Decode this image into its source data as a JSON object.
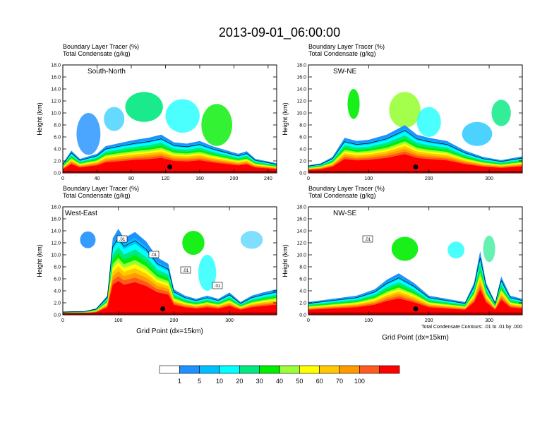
{
  "chart_data": {
    "type": "heatmap",
    "title": "2013-09-01_06:00:00",
    "field_label": "Boundary Layer Tracer",
    "field_units": "(%)",
    "contour_label": "Total Condensate",
    "contour_units": "(g/kg)",
    "ylabel": "Height (km)",
    "xlabel": "Grid Point (dx=15km)",
    "contour_note": "Total Condensate Contours: .01 to .01 by .000",
    "legend": {
      "labels": [
        "1",
        "5",
        "10",
        "20",
        "30",
        "40",
        "50",
        "60",
        "70",
        "100"
      ],
      "colors": [
        "#ffffff",
        "#1e90ff",
        "#00bfff",
        "#00ffff",
        "#00e880",
        "#00ee00",
        "#9aff3a",
        "#ffff00",
        "#ffc800",
        "#ff9a00",
        "#ff5a1e",
        "#ff0000"
      ]
    },
    "panels": [
      {
        "name": "South-North",
        "xlim": [
          0,
          250
        ],
        "xticks": [
          "0",
          "40",
          "80",
          "120",
          "160",
          "200",
          "240"
        ],
        "xtick_values": [
          0,
          40,
          80,
          120,
          160,
          200,
          240
        ],
        "ylim": [
          0,
          18
        ],
        "yticks": [
          "0.0",
          "2.0",
          "4.0",
          "6.0",
          "8.0",
          "10.0",
          "12.0",
          "14.0",
          "16.0",
          "18.0"
        ],
        "station_x": 125,
        "contour_labels": [],
        "show_xlabel": false,
        "show_note": false,
        "profile": [
          [
            0,
            1.5
          ],
          [
            10,
            3.5
          ],
          [
            20,
            2.2
          ],
          [
            40,
            3.0
          ],
          [
            50,
            4.2
          ],
          [
            70,
            4.8
          ],
          [
            85,
            5.2
          ],
          [
            100,
            5.5
          ],
          [
            115,
            6.0
          ],
          [
            130,
            4.8
          ],
          [
            145,
            4.6
          ],
          [
            160,
            5.0
          ],
          [
            175,
            4.2
          ],
          [
            190,
            3.6
          ],
          [
            205,
            3.0
          ],
          [
            215,
            3.4
          ],
          [
            225,
            2.2
          ],
          [
            240,
            1.8
          ],
          [
            250,
            1.5
          ]
        ],
        "blobs": [
          [
            30,
            6.5,
            14,
            3.5,
            0.8,
            "#1e90ff"
          ],
          [
            95,
            11.0,
            22,
            2.5,
            0.9,
            "#00e880"
          ],
          [
            140,
            9.5,
            20,
            2.8,
            0.7,
            "#00ffff"
          ],
          [
            180,
            8.0,
            18,
            3.5,
            0.8,
            "#00ee00"
          ],
          [
            60,
            9.0,
            12,
            2.0,
            0.6,
            "#00bfff"
          ]
        ]
      },
      {
        "name": "SW-NE",
        "xlim": [
          0,
          355
        ],
        "xticks": [
          "0",
          "100",
          "200",
          "300"
        ],
        "xtick_values": [
          0,
          100,
          200,
          300
        ],
        "ylim": [
          0,
          18
        ],
        "yticks": [
          "0.0",
          "2.0",
          "4.0",
          "6.0",
          "8.0",
          "10.0",
          "12.0",
          "14.0",
          "16.0",
          "18.0"
        ],
        "station_x": 178,
        "contour_labels": [],
        "show_xlabel": false,
        "show_note": false,
        "profile": [
          [
            0,
            1.2
          ],
          [
            20,
            1.5
          ],
          [
            40,
            2.5
          ],
          [
            60,
            5.5
          ],
          [
            80,
            5.0
          ],
          [
            100,
            5.2
          ],
          [
            130,
            6.0
          ],
          [
            160,
            7.5
          ],
          [
            180,
            6.0
          ],
          [
            200,
            5.5
          ],
          [
            230,
            5.0
          ],
          [
            260,
            3.5
          ],
          [
            290,
            2.5
          ],
          [
            320,
            2.0
          ],
          [
            355,
            2.6
          ]
        ],
        "blobs": [
          [
            75,
            11.5,
            10,
            2.5,
            0.9,
            "#00ee00"
          ],
          [
            160,
            10.5,
            26,
            3.0,
            0.9,
            "#9aff3a"
          ],
          [
            200,
            8.5,
            20,
            2.5,
            0.7,
            "#00ffff"
          ],
          [
            280,
            6.5,
            25,
            2.0,
            0.7,
            "#00bfff"
          ],
          [
            320,
            10.0,
            16,
            2.2,
            0.8,
            "#00e880"
          ]
        ]
      },
      {
        "name": "West-East",
        "xlim": [
          0,
          385
        ],
        "xticks": [
          "0",
          "100",
          "200",
          "300"
        ],
        "xtick_values": [
          0,
          100,
          200,
          300
        ],
        "ylim": [
          0,
          18
        ],
        "yticks": [
          "0.0",
          "2.0",
          "4.0",
          "6.0",
          "8.0",
          "10.0",
          "12.0",
          "14.0",
          "16.0",
          "18.0"
        ],
        "station_x": 180,
        "contour_labels": [
          ".01",
          ".01",
          ".01",
          ".01"
        ],
        "show_xlabel": true,
        "show_note": false,
        "profile": [
          [
            0,
            0.5
          ],
          [
            40,
            0.6
          ],
          [
            60,
            1.0
          ],
          [
            80,
            3.0
          ],
          [
            90,
            12.0
          ],
          [
            100,
            13.5
          ],
          [
            110,
            12.0
          ],
          [
            130,
            13.0
          ],
          [
            150,
            11.5
          ],
          [
            170,
            9.0
          ],
          [
            190,
            8.0
          ],
          [
            200,
            4.0
          ],
          [
            220,
            3.0
          ],
          [
            240,
            2.5
          ],
          [
            260,
            3.0
          ],
          [
            280,
            2.5
          ],
          [
            300,
            3.5
          ],
          [
            320,
            2.0
          ],
          [
            340,
            3.0
          ],
          [
            360,
            3.5
          ],
          [
            385,
            4.0
          ]
        ],
        "blobs": [
          [
            235,
            12.0,
            20,
            2.0,
            0.9,
            "#00ee00"
          ],
          [
            260,
            7.0,
            16,
            3.0,
            0.7,
            "#00ffff"
          ],
          [
            45,
            12.5,
            14,
            1.4,
            0.9,
            "#1e90ff"
          ],
          [
            340,
            12.5,
            20,
            1.5,
            0.5,
            "#00bfff"
          ]
        ]
      },
      {
        "name": "NW-SE",
        "xlim": [
          0,
          355
        ],
        "xticks": [
          "0",
          "100",
          "200",
          "300"
        ],
        "xtick_values": [
          0,
          100,
          200,
          300
        ],
        "ylim": [
          0,
          18
        ],
        "yticks": [
          "0.0",
          "2.0",
          "4.0",
          "6.0",
          "8.0",
          "10.0",
          "12.0",
          "14.0",
          "16.0",
          "18.0"
        ],
        "station_x": 178,
        "contour_labels": [
          ".01"
        ],
        "show_xlabel": true,
        "show_note": true,
        "profile": [
          [
            0,
            2.0
          ],
          [
            40,
            2.5
          ],
          [
            80,
            3.0
          ],
          [
            110,
            4.0
          ],
          [
            130,
            5.5
          ],
          [
            150,
            6.5
          ],
          [
            175,
            5.0
          ],
          [
            200,
            3.0
          ],
          [
            230,
            2.5
          ],
          [
            260,
            2.0
          ],
          [
            275,
            5.0
          ],
          [
            285,
            10.0
          ],
          [
            295,
            5.0
          ],
          [
            310,
            2.0
          ],
          [
            320,
            6.0
          ],
          [
            335,
            3.0
          ],
          [
            355,
            2.5
          ]
        ],
        "blobs": [
          [
            160,
            11.0,
            22,
            2.0,
            0.9,
            "#00ee00"
          ],
          [
            245,
            10.8,
            14,
            1.4,
            0.7,
            "#00ffff"
          ],
          [
            300,
            11.0,
            10,
            2.2,
            0.6,
            "#00e880"
          ]
        ]
      }
    ]
  }
}
